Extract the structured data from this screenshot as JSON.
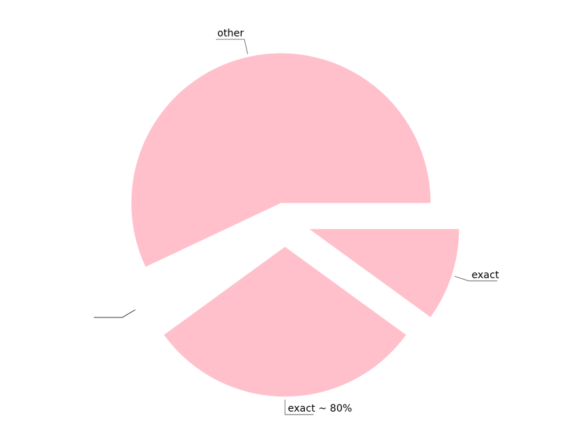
{
  "chart_data": {
    "type": "pie",
    "title": "",
    "start_angle_deg": 0,
    "direction": "clockwise",
    "slice_color": "#ffc0cb",
    "leader_color": "#555555",
    "slices": [
      {
        "label": "exact",
        "value": 0.1
      },
      {
        "label": "exact ~ 80%",
        "value": 0.3
      },
      {
        "label": "",
        "value": 0.03
      },
      {
        "label": "other",
        "value": 0.57
      }
    ]
  }
}
